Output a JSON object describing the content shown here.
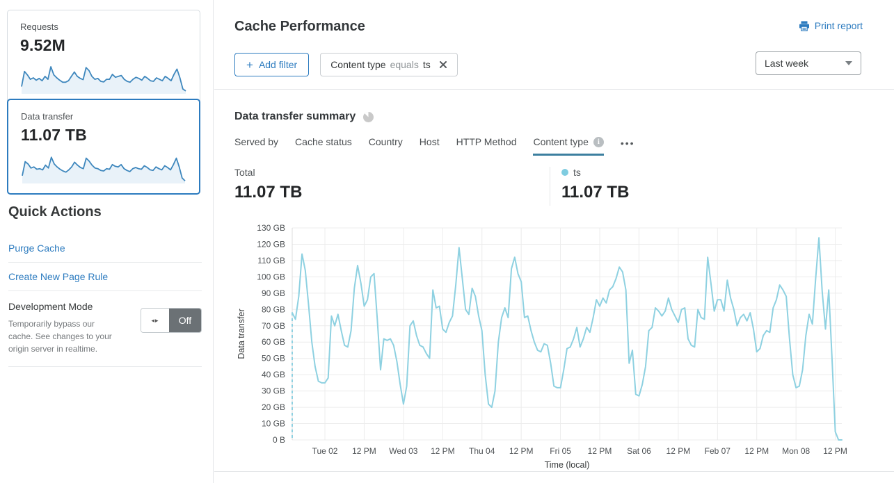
{
  "colors": {
    "link_blue": "#2c7bbf",
    "chart_line": "#8ed1e1",
    "legend_dot": "#7fcce0",
    "sparkline_stroke": "#3e87bd",
    "sparkline_fill": "#e9f2f9",
    "tab_underline": "#3c7f9f",
    "toggle_gray": "#6b7175",
    "grid": "#ececec"
  },
  "sidebar": {
    "cards": [
      {
        "title": "Requests",
        "value": "9.52M",
        "selected": false,
        "sparkline": [
          20,
          72,
          60,
          45,
          50,
          42,
          48,
          40,
          55,
          45,
          88,
          60,
          50,
          42,
          35,
          35,
          40,
          55,
          70,
          55,
          48,
          44,
          85,
          75,
          55,
          45,
          48,
          38,
          36,
          45,
          45,
          62,
          52,
          55,
          58,
          45,
          38,
          35,
          45,
          52,
          48,
          42,
          55,
          48,
          40,
          38,
          50,
          45,
          40,
          55,
          48,
          40,
          62,
          80,
          50,
          12,
          5
        ]
      },
      {
        "title": "Data transfer",
        "value": "11.07 TB",
        "selected": true,
        "sparkline": [
          22,
          70,
          62,
          48,
          52,
          44,
          46,
          42,
          58,
          48,
          85,
          62,
          52,
          44,
          38,
          34,
          42,
          52,
          68,
          58,
          50,
          46,
          82,
          72,
          58,
          48,
          46,
          40,
          38,
          46,
          44,
          60,
          54,
          52,
          60,
          46,
          40,
          36,
          46,
          50,
          46,
          44,
          56,
          50,
          42,
          40,
          52,
          46,
          42,
          56,
          50,
          42,
          60,
          82,
          52,
          14,
          4
        ]
      }
    ],
    "quick_actions": {
      "title": "Quick Actions",
      "links": [
        "Purge Cache",
        "Create New Page Rule"
      ],
      "dev_mode": {
        "title": "Development Mode",
        "description": "Temporarily bypass our cache. See changes to your origin server in realtime.",
        "toggle_state": "Off"
      }
    }
  },
  "header": {
    "title": "Cache Performance",
    "print_label": "Print report"
  },
  "filters": {
    "add_label": "Add filter",
    "chip": {
      "field": "Content type",
      "operator": "equals",
      "value": "ts"
    },
    "range_label": "Last week",
    "more_label": "•••"
  },
  "summary": {
    "title": "Data transfer summary",
    "tabs": [
      {
        "label": "Served by",
        "active": false,
        "info": false
      },
      {
        "label": "Cache status",
        "active": false,
        "info": false
      },
      {
        "label": "Country",
        "active": false,
        "info": false
      },
      {
        "label": "Host",
        "active": false,
        "info": false
      },
      {
        "label": "HTTP Method",
        "active": false,
        "info": false
      },
      {
        "label": "Content type",
        "active": true,
        "info": true
      }
    ],
    "total_label": "Total",
    "total_value": "11.07 TB",
    "legend": {
      "name": "ts",
      "value": "11.07 TB"
    }
  },
  "chart_data": {
    "type": "line",
    "title": "Data transfer summary",
    "xlabel": "Time (local)",
    "ylabel": "Data transfer",
    "ylim": [
      0,
      130
    ],
    "y_unit": "GB",
    "y_tick_labels": [
      "0 B",
      "10 GB",
      "20 GB",
      "30 GB",
      "40 GB",
      "50 GB",
      "60 GB",
      "70 GB",
      "80 GB",
      "90 GB",
      "100 GB",
      "110 GB",
      "120 GB",
      "130 GB"
    ],
    "x_ticks": [
      "Tue 02",
      "12 PM",
      "Wed 03",
      "12 PM",
      "Thu 04",
      "12 PM",
      "Fri 05",
      "12 PM",
      "Sat 06",
      "12 PM",
      "Feb 07",
      "12 PM",
      "Mon 08",
      "12 PM"
    ],
    "x_tick_indices": [
      10,
      22,
      34,
      46,
      58,
      70,
      82,
      94,
      106,
      118,
      130,
      142,
      154,
      166
    ],
    "grid": true,
    "start_dashed_marker": true,
    "series": [
      {
        "name": "ts",
        "unit": "GB",
        "interval": "hourly",
        "values": [
          78,
          74,
          88,
          114,
          104,
          83,
          60,
          45,
          36,
          35,
          35,
          38,
          76,
          70,
          77,
          67,
          58,
          57,
          67,
          93,
          107,
          96,
          82,
          86,
          100,
          102,
          74,
          43,
          62,
          61,
          62,
          58,
          48,
          34,
          22,
          33,
          70,
          73,
          64,
          58,
          57,
          53,
          50,
          92,
          81,
          82,
          68,
          66,
          72,
          76,
          95,
          118,
          99,
          80,
          77,
          93,
          88,
          76,
          67,
          40,
          22,
          20,
          30,
          60,
          75,
          81,
          75,
          105,
          112,
          102,
          97,
          75,
          76,
          67,
          60,
          55,
          54,
          59,
          58,
          47,
          33,
          32,
          32,
          43,
          56,
          57,
          62,
          69,
          57,
          62,
          69,
          66,
          75,
          86,
          82,
          87,
          84,
          92,
          94,
          99,
          106,
          103,
          92,
          47,
          55,
          28,
          27,
          34,
          45,
          67,
          69,
          81,
          79,
          76,
          79,
          87,
          80,
          76,
          72,
          80,
          81,
          62,
          58,
          57,
          80,
          75,
          74,
          112,
          96,
          79,
          86,
          86,
          79,
          98,
          87,
          80,
          70,
          75,
          77,
          73,
          78,
          68,
          54,
          56,
          64,
          67,
          66,
          81,
          86,
          95,
          92,
          88,
          62,
          40,
          32,
          33,
          43,
          64,
          77,
          71,
          99,
          124,
          91,
          68,
          92,
          50,
          5,
          0,
          0
        ]
      }
    ]
  }
}
